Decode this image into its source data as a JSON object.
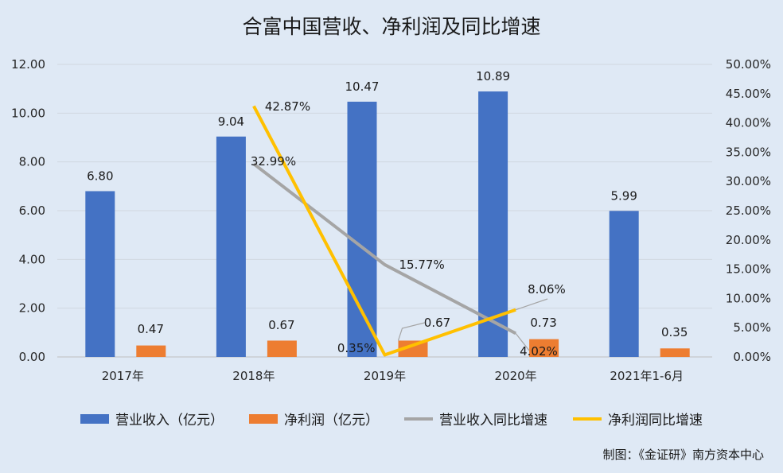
{
  "chart_data": {
    "type": "bar",
    "title": "合富中国营收、净利润及同比增速",
    "categories": [
      "2017年",
      "2018年",
      "2019年",
      "2020年",
      "2021年1-6月"
    ],
    "left_axis": {
      "range": [
        0,
        12
      ],
      "ticks": [
        "0.00",
        "2.00",
        "4.00",
        "6.00",
        "8.00",
        "10.00",
        "12.00"
      ]
    },
    "right_axis": {
      "range": [
        0,
        50
      ],
      "ticks": [
        "0.00%",
        "5.00%",
        "10.00%",
        "15.00%",
        "20.00%",
        "25.00%",
        "30.00%",
        "35.00%",
        "40.00%",
        "45.00%",
        "50.00%"
      ]
    },
    "series": [
      {
        "name": "营业收入（亿元）",
        "kind": "bar",
        "axis": "left",
        "color": "#4472c4",
        "values": [
          6.8,
          9.04,
          10.47,
          10.89,
          5.99
        ],
        "labels": [
          "6.80",
          "9.04",
          "10.47",
          "10.89",
          "5.99"
        ]
      },
      {
        "name": "净利润（亿元）",
        "kind": "bar",
        "axis": "left",
        "color": "#ed7d31",
        "values": [
          0.47,
          0.67,
          0.67,
          0.73,
          0.35
        ],
        "labels": [
          "0.47",
          "0.67",
          "0.67",
          "0.73",
          "0.35"
        ]
      },
      {
        "name": "营业收入同比增速",
        "kind": "line",
        "axis": "right",
        "color": "#a5a5a5",
        "values": [
          null,
          32.99,
          15.77,
          4.02,
          null
        ],
        "labels": [
          null,
          "32.99%",
          "15.77%",
          "4.02%",
          null
        ]
      },
      {
        "name": "净利润同比增速",
        "kind": "line",
        "axis": "right",
        "color": "#ffc000",
        "values": [
          null,
          42.87,
          0.35,
          8.06,
          null
        ],
        "labels": [
          null,
          "42.87%",
          "0.35%",
          "8.06%",
          null
        ]
      }
    ]
  },
  "credit": "制图：《金证研》南方资本中心"
}
